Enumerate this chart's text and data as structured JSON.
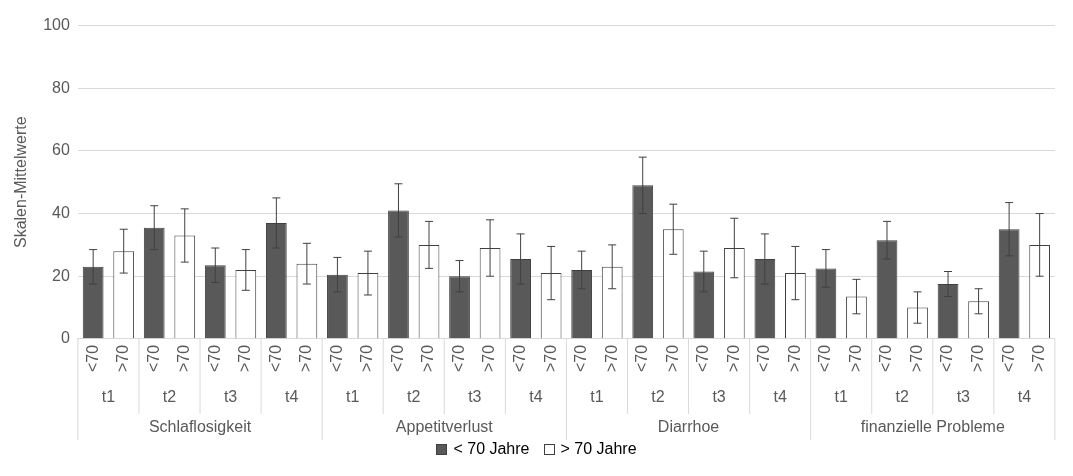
{
  "chart_data": {
    "type": "bar",
    "ylabel": "Skalen-Mittelwerte",
    "categories": [
      "<70",
      ">70",
      "<70",
      ">70",
      "<70",
      ">70",
      "<70",
      ">70",
      "<70",
      ">70",
      "<70",
      ">70",
      "<70",
      ">70",
      "<70",
      ">70",
      "<70",
      ">70",
      "<70",
      ">70",
      "<70",
      ">70",
      "<70",
      ">70",
      "<70",
      ">70",
      "<70",
      ">70",
      "<70",
      ">70",
      "<70",
      ">70"
    ],
    "series": [
      {
        "name": "< 70 Jahre",
        "color": "#595959",
        "values": [
          23,
          null,
          35.5,
          null,
          23.5,
          null,
          37,
          null,
          20.5,
          null,
          41,
          null,
          20,
          null,
          25.5,
          null,
          22,
          null,
          49,
          null,
          21.5,
          null,
          25.5,
          null,
          22.5,
          null,
          31.5,
          null,
          17.5,
          null,
          35,
          null
        ],
        "errors": [
          5.5,
          null,
          7,
          null,
          5.5,
          null,
          8,
          null,
          5.5,
          null,
          8.5,
          null,
          5,
          null,
          8,
          null,
          6,
          null,
          9,
          null,
          6.5,
          null,
          8,
          null,
          6,
          null,
          6,
          null,
          4,
          null,
          8.5,
          null
        ]
      },
      {
        "name": "> 70 Jahre",
        "color": "#ffffff",
        "values": [
          null,
          28,
          null,
          33,
          null,
          22,
          null,
          24,
          null,
          21,
          null,
          30,
          null,
          29,
          null,
          21,
          null,
          23,
          null,
          35,
          null,
          29,
          null,
          21,
          null,
          13.5,
          null,
          10,
          null,
          12,
          null,
          30
        ],
        "errors": [
          null,
          7,
          null,
          8.5,
          null,
          6.5,
          null,
          6.5,
          null,
          7,
          null,
          7.5,
          null,
          9,
          null,
          8.5,
          null,
          7,
          null,
          8,
          null,
          9.5,
          null,
          8.5,
          null,
          5.5,
          null,
          5,
          null,
          4,
          null,
          10
        ]
      }
    ],
    "annotations": [
      "t1",
      "t2",
      "t3",
      "t4",
      "t1",
      "t2",
      "t3",
      "t4",
      "t1",
      "t2",
      "t3",
      "t4",
      "t1",
      "t2",
      "t3",
      "t4",
      "Schlaflosigkeit",
      "Appetitverlust",
      "Diarrhoe",
      "finanzielle Probleme"
    ],
    "ylim": [
      0,
      100
    ],
    "yticks": [
      0,
      20,
      40,
      60,
      80,
      100
    ],
    "grid": "y",
    "legend": "bottom"
  }
}
